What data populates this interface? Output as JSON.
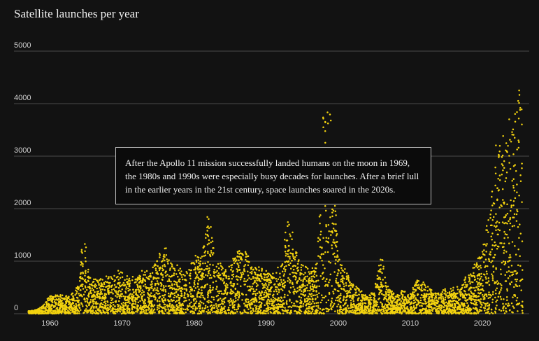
{
  "chart_data": {
    "type": "scatter",
    "title": "Satellite launches per year",
    "xlabel": "",
    "ylabel": "",
    "xlim": [
      1955,
      2026.5
    ],
    "ylim": [
      0,
      5000
    ],
    "y_ticks": [
      0,
      1000,
      2000,
      3000,
      4000,
      5000
    ],
    "x_ticks": [
      1960,
      1970,
      1980,
      1990,
      2000,
      2010,
      2020
    ],
    "grid": "horizontal",
    "point_color": "#f2d20f",
    "annotation": "After the Apollo 11 mission successfully landed humans on the moon in 1969, the 1980s and 1990s were especially busy decades for launches. After a brief lull in the earlier years in the 21st century, space launches soared in the 2020s.",
    "envelope": {
      "x": [
        1957,
        1958,
        1959,
        1960,
        1961,
        1962,
        1963,
        1964,
        1964.5,
        1965,
        1965.5,
        1966,
        1967,
        1968,
        1969,
        1970,
        1971,
        1972,
        1973,
        1974,
        1975,
        1976,
        1977,
        1978,
        1979,
        1980,
        1981,
        1982,
        1983,
        1984,
        1985,
        1986,
        1987,
        1988,
        1989,
        1990,
        1991,
        1992,
        1993,
        1994,
        1995,
        1996,
        1997,
        1998,
        1999,
        2000,
        2001,
        2002,
        2003,
        2004,
        2005,
        2006,
        2007,
        2008,
        2009,
        2010,
        2011,
        2012,
        2013,
        2014,
        2015,
        2016,
        2017,
        2018,
        2019,
        2020,
        2021,
        2022,
        2023,
        2024,
        2025
      ],
      "y": [
        50,
        80,
        150,
        420,
        400,
        350,
        400,
        600,
        1550,
        1500,
        700,
        700,
        680,
        750,
        800,
        900,
        700,
        750,
        900,
        800,
        1200,
        1300,
        1000,
        900,
        850,
        1100,
        1200,
        2000,
        1100,
        1000,
        950,
        1350,
        1300,
        1000,
        950,
        900,
        850,
        950,
        2000,
        1350,
        1000,
        900,
        1000,
        4300,
        4000,
        1200,
        900,
        600,
        500,
        400,
        450,
        1200,
        500,
        400,
        450,
        400,
        700,
        600,
        450,
        450,
        500,
        500,
        550,
        800,
        1000,
        1300,
        2000,
        3600,
        3500,
        3800,
        4700
      ]
    }
  }
}
